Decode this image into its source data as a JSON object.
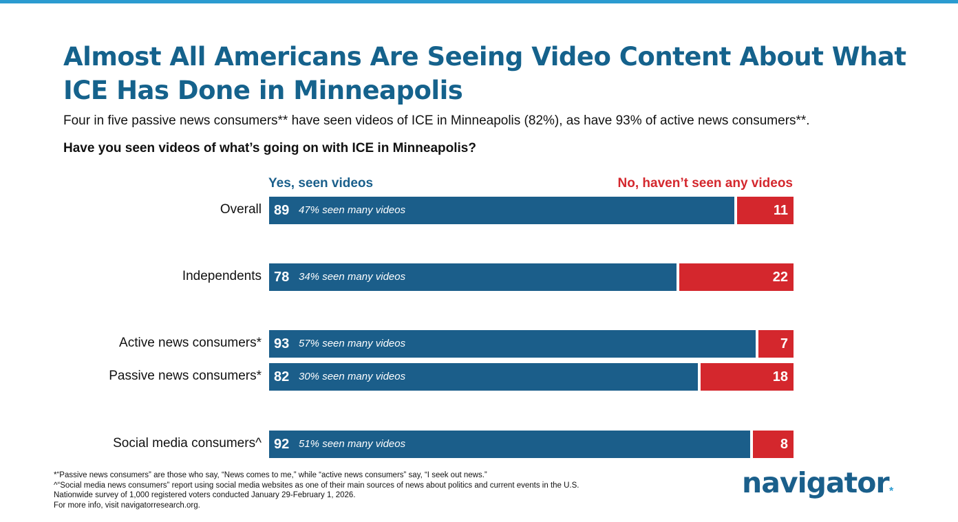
{
  "title": "Almost All Americans Are Seeing Video Content About What ICE Has Done in Minneapolis",
  "subtitle": "Four in five passive news consumers** have seen videos of ICE in Minneapolis (82%), as have 93% of active news consumers**.",
  "question": "Have you seen videos of what’s going on with ICE in Minneapolis?",
  "chart_data": {
    "type": "bar",
    "orientation": "horizontal-stacked",
    "title": "Have you seen videos of what’s going on with ICE in Minneapolis?",
    "categories": [
      "Overall",
      "Independents",
      "Active news consumers*",
      "Passive news consumers*",
      "Social media consumers^"
    ],
    "series": [
      {
        "name": "Yes, seen videos",
        "color": "#1b5e8a",
        "values": [
          89,
          78,
          93,
          82,
          92
        ]
      },
      {
        "name": "No, haven’t seen any videos",
        "color": "#d4272d",
        "values": [
          11,
          22,
          7,
          18,
          8
        ]
      }
    ],
    "annotations": [
      "47% seen many videos",
      "34% seen many videos",
      "57% seen many videos",
      "30% seen many videos",
      "51% seen many videos"
    ],
    "xlim": [
      0,
      100
    ]
  },
  "footnotes": [
    "*“Passive news consumers” are those who say, “News comes to me,” while “active news consumers” say, “I seek out news.”",
    "^“Social media news consumers” report using social media websites as one of their main sources of news about politics and current events in the U.S.",
    "Nationwide survey of 1,000 registered voters conducted January 29-February 1, 2026.",
    "For more info, visit navigatorresearch.org."
  ],
  "logo": {
    "text": "navigator",
    "star": "*"
  },
  "colors": {
    "accent": "#2b9bd0",
    "yes": "#1b5e8a",
    "no": "#d4272d",
    "title": "#15628c"
  }
}
